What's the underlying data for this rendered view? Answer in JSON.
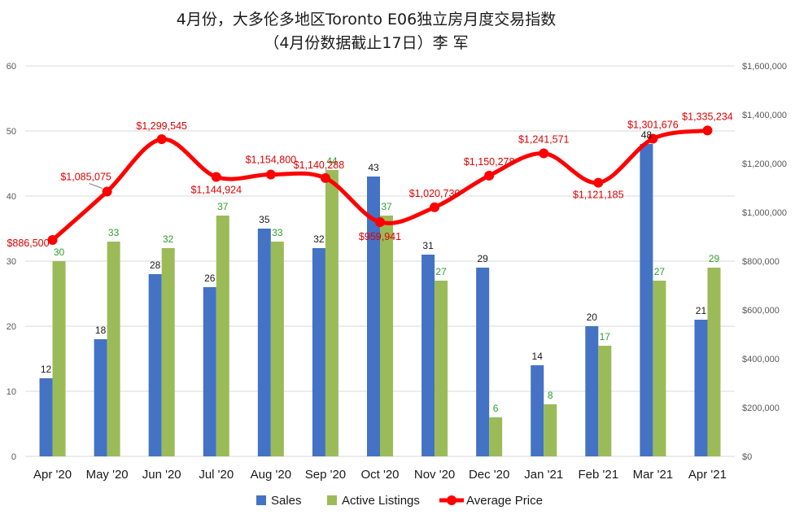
{
  "chart_data": {
    "type": "bar",
    "title": "4月份，大多伦多地区Toronto E06独立房月度交易指数",
    "subtitle": "（4月份数据截止17日）李 军",
    "categories": [
      "Apr '20",
      "May '20",
      "Jun '20",
      "Jul '20",
      "Aug '20",
      "Sep '20",
      "Oct '20",
      "Nov '20",
      "Dec '20",
      "Jan '21",
      "Feb '21",
      "Mar '21",
      "Apr '21"
    ],
    "series": [
      {
        "name": "Sales",
        "type": "bar",
        "axis": "left",
        "color": "#4472c4",
        "values": [
          12,
          18,
          28,
          26,
          35,
          32,
          43,
          31,
          29,
          14,
          20,
          48,
          21
        ],
        "labels": [
          "12",
          "18",
          "28",
          "26",
          "35",
          "32",
          "43",
          "31",
          "29",
          "14",
          "20",
          "48",
          "21"
        ]
      },
      {
        "name": "Active Listings",
        "type": "bar",
        "axis": "left",
        "color": "#9bbb59",
        "values": [
          30,
          33,
          32,
          37,
          33,
          44,
          37,
          27,
          6,
          8,
          17,
          27,
          29
        ],
        "labels": [
          "30",
          "33",
          "32",
          "37",
          "33",
          "44",
          "37",
          "27",
          "6",
          "8",
          "17",
          "27",
          "29"
        ]
      },
      {
        "name": "Average Price",
        "type": "line",
        "axis": "right",
        "color": "#ff0000",
        "values": [
          886500,
          1085075,
          1299545,
          1144924,
          1154800,
          1140288,
          959941,
          1020730,
          1150278,
          1241571,
          1121185,
          1301676,
          1335234
        ],
        "labels": [
          "$886,500",
          "$1,085,075",
          "$1,299,545",
          "$1,144,924",
          "$1,154,800",
          "$1,140,288",
          "$959,941",
          "$1,020,730",
          "$1,150,278",
          "$1,241,571",
          "$1,121,185",
          "$1,301,676",
          "$1,335,234"
        ]
      }
    ],
    "ylim_left": [
      0,
      60
    ],
    "ylim_right": [
      0,
      1600000
    ],
    "yticks_left": [
      "0",
      "10",
      "20",
      "30",
      "40",
      "50",
      "60"
    ],
    "yticks_right": [
      "$0",
      "$200,000",
      "$400,000",
      "$600,000",
      "$800,000",
      "$1,000,000",
      "$1,200,000",
      "$1,400,000",
      "$1,600,000"
    ],
    "grid": true,
    "legend_position": "bottom"
  }
}
